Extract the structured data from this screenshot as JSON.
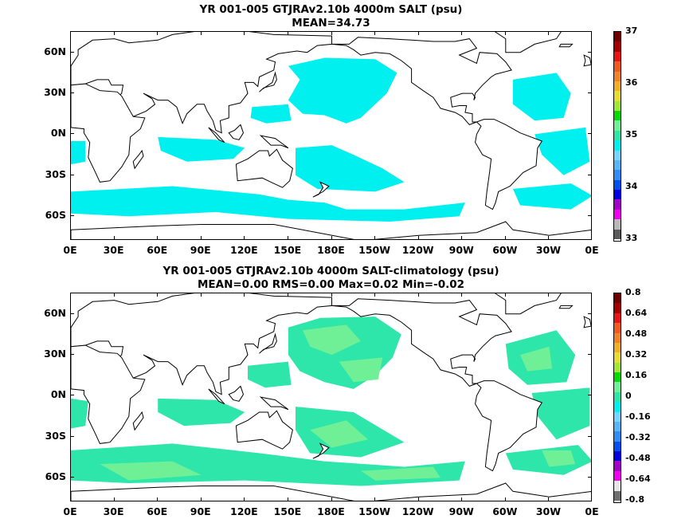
{
  "panels": [
    {
      "title_line1": "YR 001-005 GTJRAv2.10b 4000m SALT (psu)",
      "title_line2": "MEAN=34.73",
      "colorbar": {
        "colors": [
          "#5a5a5a",
          "#b9b9b9",
          "#f000f0",
          "#a000c8",
          "#0000e0",
          "#0050f0",
          "#2f8ef6",
          "#56b6fa",
          "#76d5fc",
          "#00f0f0",
          "#2ee6aa",
          "#70f096",
          "#00dc00",
          "#a0e632",
          "#e6dc32",
          "#f0af28",
          "#f08228",
          "#f05a1e",
          "#e61414",
          "#a50000",
          "#6e0000"
        ],
        "labels": [
          "37",
          "36",
          "35",
          "34",
          "33"
        ]
      }
    },
    {
      "title_line1": "YR 001-005 GTJRAv2.10b 4000m SALT-climatology (psu)",
      "title_line2": "MEAN=0.00   RMS=0.00   Max=0.02   Min=-0.02",
      "colorbar": {
        "colors": [
          "#6e6e6e",
          "#e6e6e6",
          "#f000f0",
          "#a000c8",
          "#0000e0",
          "#0050f0",
          "#2f8ef6",
          "#56b6fa",
          "#76d5fc",
          "#00f0f0",
          "#2ee6aa",
          "#70f096",
          "#00dc00",
          "#a0e632",
          "#e6dc32",
          "#f0af28",
          "#f08228",
          "#f05a1e",
          "#e61414",
          "#a50000",
          "#6e0000"
        ],
        "labels": [
          "0.8",
          "0.64",
          "0.48",
          "0.32",
          "0.16",
          "0",
          "-0.16",
          "-0.32",
          "-0.48",
          "-0.64",
          "-0.8"
        ]
      }
    }
  ],
  "axes": {
    "lat_labels": [
      "60N",
      "30N",
      "0N",
      "30S",
      "60S"
    ],
    "lat_values": [
      60,
      30,
      0,
      -30,
      -60
    ],
    "lon_labels": [
      "0E",
      "30E",
      "60E",
      "90E",
      "120E",
      "150E",
      "180E",
      "150W",
      "120W",
      "90W",
      "60W",
      "30W",
      "0E"
    ],
    "lon_values": [
      0,
      30,
      60,
      90,
      120,
      150,
      180,
      210,
      240,
      270,
      300,
      330,
      360
    ],
    "lat_range": [
      -78,
      75
    ],
    "lon_range": [
      0,
      360
    ]
  },
  "colors": {
    "salt_fill": "#00f0f0",
    "anom_fill_a": "#2ee6aa",
    "anom_fill_b": "#70f096",
    "coast": "#000000"
  }
}
